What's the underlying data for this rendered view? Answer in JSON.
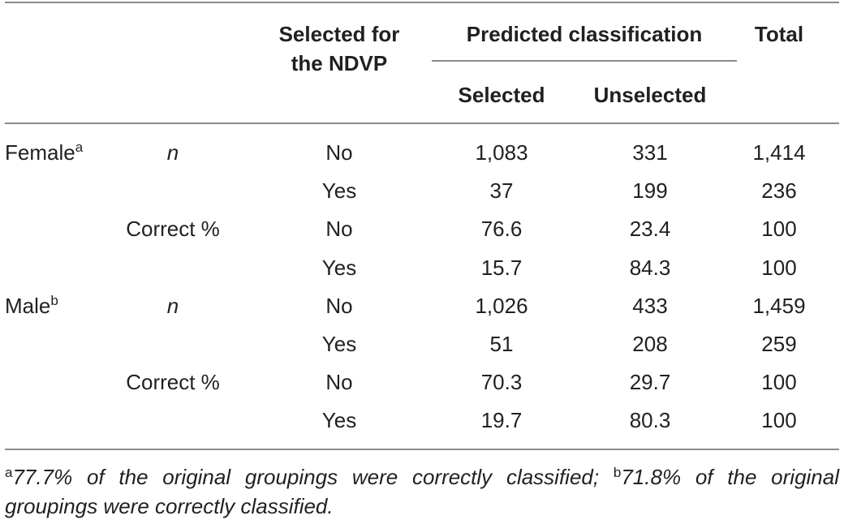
{
  "header": {
    "selected_col": "Selected for the NDVP",
    "selected_col_line1": "Selected for",
    "selected_col_line2": "the NDVP",
    "predicted_group": "Predicted classification",
    "selected": "Selected",
    "unselected": "Unselected",
    "total": "Total"
  },
  "groups": [
    {
      "label": "Female",
      "sup": "a",
      "rows": [
        {
          "measure": "n",
          "sel": "No",
          "selected": "1,083",
          "unselected": "331",
          "total": "1,414"
        },
        {
          "measure": "",
          "sel": "Yes",
          "selected": "37",
          "unselected": "199",
          "total": "236"
        },
        {
          "measure": "Correct %",
          "sel": "No",
          "selected": "76.6",
          "unselected": "23.4",
          "total": "100"
        },
        {
          "measure": "",
          "sel": "Yes",
          "selected": "15.7",
          "unselected": "84.3",
          "total": "100"
        }
      ]
    },
    {
      "label": "Male",
      "sup": "b",
      "rows": [
        {
          "measure": "n",
          "sel": "No",
          "selected": "1,026",
          "unselected": "433",
          "total": "1,459"
        },
        {
          "measure": "",
          "sel": "Yes",
          "selected": "51",
          "unselected": "208",
          "total": "259"
        },
        {
          "measure": "Correct %",
          "sel": "No",
          "selected": "70.3",
          "unselected": "29.7",
          "total": "100"
        },
        {
          "measure": "",
          "sel": "Yes",
          "selected": "19.7",
          "unselected": "80.3",
          "total": "100"
        }
      ]
    }
  ],
  "footnote": {
    "a_sup": "a",
    "a_text": "77.7% of the original groupings were correctly classified;",
    "b_sup": "b",
    "b_text": "71.8% of the original groupings were correctly classified."
  }
}
